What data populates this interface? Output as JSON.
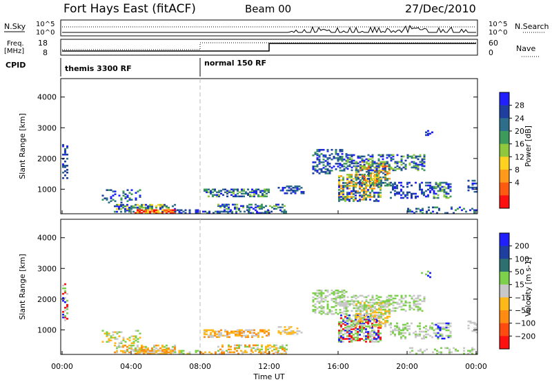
{
  "header": {
    "station": "Fort Hays East (fitACF)",
    "beam": "Beam 00",
    "date": "27/Dec/2010"
  },
  "top_panel": {
    "left_label": "N.Sky",
    "right_label": "N.Search",
    "left_ticks": [
      "10^5",
      "10^0"
    ],
    "right_ticks": [
      "10^5",
      "10^0"
    ]
  },
  "freq_panel": {
    "label_line1": "Freq.",
    "label_line2": "[MHz]",
    "left_ticks": [
      "18",
      "8"
    ],
    "right_ticks": [
      "60",
      "0"
    ],
    "right_label": "Nave"
  },
  "cpid_panel": {
    "label": "CPID",
    "segments": [
      "themis 3300 RF",
      "normal 150 RF"
    ]
  },
  "chart_data": [
    {
      "type": "heatmap",
      "ylabel": "Slant Range [km]",
      "ylim": [
        200,
        4600
      ],
      "yticks": [
        "4000",
        "3000",
        "2000",
        "1000"
      ],
      "colorbar_label": "Power [dB]",
      "colorbar_ticks": [
        "28",
        "24",
        "20",
        "16",
        "12",
        "8",
        "4"
      ],
      "colors": [
        "#2020ff",
        "#1f3fa0",
        "#2e6e8a",
        "#3c9a5a",
        "#8ec83c",
        "#ffd21f",
        "#ff9a1a",
        "#ff5a10",
        "#ff1010"
      ]
    },
    {
      "type": "heatmap",
      "ylabel": "Slant Range [km]",
      "ylim": [
        200,
        4600
      ],
      "yticks": [
        "4000",
        "3000",
        "2000",
        "1000"
      ],
      "xlabel": "Time UT",
      "xticks": [
        "00:00",
        "04:00",
        "08:00",
        "12:00",
        "16:00",
        "20:00",
        "00:00"
      ],
      "colorbar_label": "Velocity [m s-1]",
      "colorbar_ticks": [
        "200",
        "100",
        "50",
        "15",
        "−15",
        "−50",
        "−100",
        "−200"
      ],
      "colors": [
        "#2020ff",
        "#1f3fa0",
        "#2e7070",
        "#7cd04c",
        "#c8c8c8",
        "#ffb818",
        "#ff8c10",
        "#ff4a10",
        "#ff1010"
      ]
    }
  ]
}
